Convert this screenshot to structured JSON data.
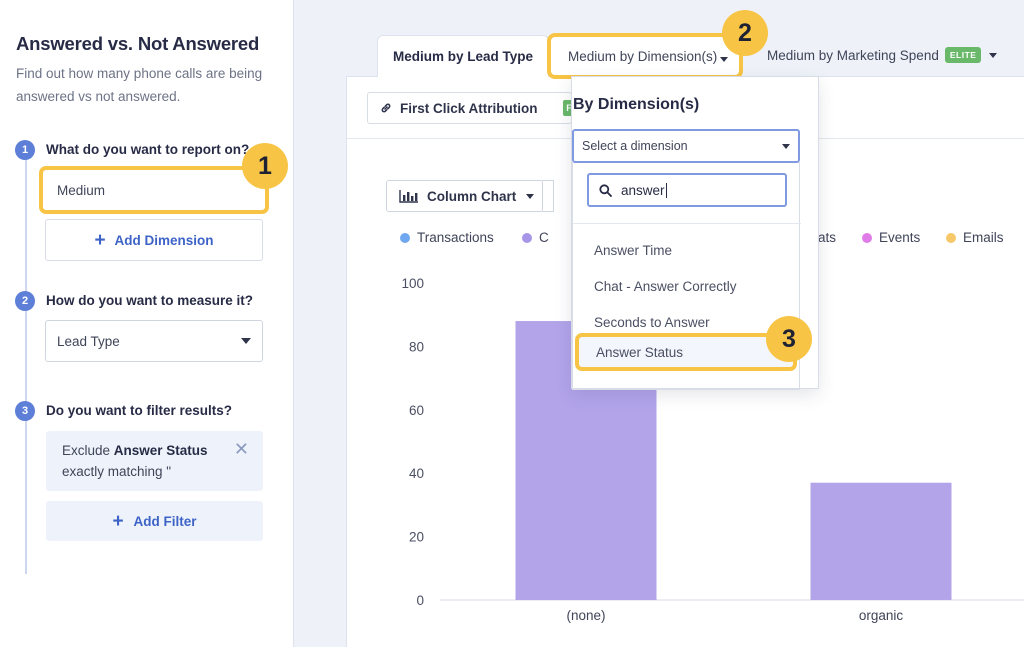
{
  "left_panel": {
    "title": "Answered vs. Not Answered",
    "description": "Find out how many phone calls are being answered vs not answered.",
    "step1": {
      "number": "1",
      "label": "What do you want to report on?",
      "value": "Medium",
      "add_label": "Add Dimension"
    },
    "step2": {
      "number": "2",
      "label": "How do you want to measure it?",
      "value": "Lead Type"
    },
    "step3": {
      "number": "3",
      "label": "Do you want to filter results?",
      "filter_prefix": "Exclude ",
      "filter_field": "Answer Status",
      "filter_suffix": "exactly matching \"",
      "add_label": "Add Filter"
    }
  },
  "tabs": {
    "lead_type": "Medium by Lead Type",
    "dimensions": "Medium by Dimension(s)",
    "marketing": "Medium by Marketing Spend",
    "elite_badge": "ELITE"
  },
  "toolbar": {
    "attribution": "First Click Attribution",
    "attribution_badge": "F",
    "chart_type": "Column Chart"
  },
  "legend": [
    {
      "label": "Transactions",
      "color": "#6fa8f0"
    },
    {
      "label": "C",
      "color": "#a796e8"
    },
    {
      "label": "ats",
      "color": ""
    },
    {
      "label": "Events",
      "color": "#e07ce8"
    },
    {
      "label": "Emails",
      "color": "#f7c86a"
    }
  ],
  "chart_data": {
    "type": "bar",
    "categories": [
      "(none)",
      "organic"
    ],
    "values": [
      88,
      37
    ],
    "ylim": [
      0,
      100
    ],
    "yticks": [
      0,
      20,
      40,
      60,
      80,
      100
    ],
    "color": "#b3a4ea",
    "title": "",
    "xlabel": "",
    "ylabel": ""
  },
  "dropdown": {
    "title": "By Dimension(s)",
    "select_placeholder": "Select a dimension",
    "search_value": "answer",
    "items": [
      "Answer Time",
      "Chat - Answer Correctly",
      "Seconds to Answer",
      "Answer Status"
    ]
  },
  "badges": [
    "1",
    "2",
    "3"
  ],
  "colors": {
    "highlight": "#f7c445",
    "accent": "#3d63c7",
    "step": "#5d7fd8"
  }
}
